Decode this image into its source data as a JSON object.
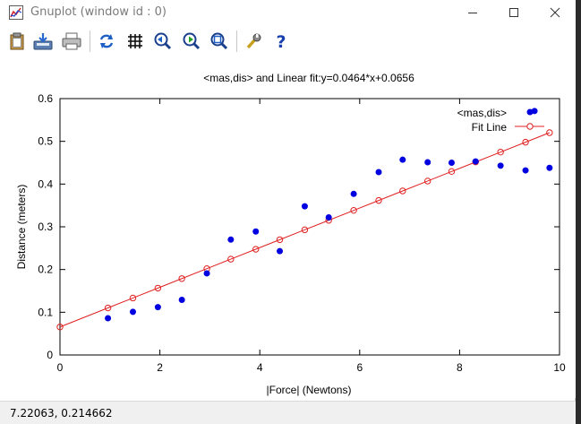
{
  "window": {
    "title": "Gnuplot (window id : 0)"
  },
  "toolbar": {
    "items": [
      {
        "name": "copy-clipboard-icon"
      },
      {
        "name": "save-icon"
      },
      {
        "name": "print-icon"
      },
      {
        "name": "replot-icon"
      },
      {
        "name": "grid-icon"
      },
      {
        "name": "zoom-previous-icon"
      },
      {
        "name": "zoom-next-icon"
      },
      {
        "name": "autoscale-icon"
      },
      {
        "name": "options-icon"
      },
      {
        "name": "help-icon"
      }
    ]
  },
  "status": {
    "coords": "7.22063,  0.214662"
  },
  "colors": {
    "points": "#0000e0",
    "fit": "#e02020",
    "axis": "#000000"
  },
  "chart_data": {
    "type": "scatter",
    "title": "<mas,dis> and Linear fit:y=0.0464*x+0.0656",
    "xlabel": "|Force| (Newtons)",
    "ylabel": "Distance (meters)",
    "xlim": [
      0,
      10
    ],
    "ylim": [
      0,
      0.6
    ],
    "xticks": [
      "0",
      "2",
      "4",
      "6",
      "8",
      "10"
    ],
    "yticks": [
      "0",
      "0.1",
      "0.2",
      "0.3",
      "0.4",
      "0.5",
      "0.6"
    ],
    "grid": false,
    "legend_position": "top-right",
    "series": [
      {
        "name": "<mas,dis>",
        "style": "points",
        "x": [
          0.96,
          1.46,
          1.96,
          2.44,
          2.94,
          3.42,
          3.92,
          4.4,
          4.9,
          5.38,
          5.88,
          6.38,
          6.86,
          7.36,
          7.84,
          8.32,
          8.82,
          9.32,
          9.5,
          9.8
        ],
        "y": [
          0.086,
          0.101,
          0.112,
          0.129,
          0.191,
          0.27,
          0.289,
          0.243,
          0.348,
          0.322,
          0.377,
          0.428,
          0.457,
          0.451,
          0.45,
          0.453,
          0.443,
          0.432,
          0.571,
          0.438
        ]
      },
      {
        "name": "Fit Line",
        "style": "linespoints",
        "x": [
          0,
          0.96,
          1.46,
          1.96,
          2.44,
          2.94,
          3.42,
          3.92,
          4.4,
          4.9,
          5.38,
          5.88,
          6.38,
          6.86,
          7.36,
          7.84,
          8.32,
          8.82,
          9.32,
          9.8
        ],
        "y": [
          0.0656,
          0.1101,
          0.1333,
          0.1565,
          0.1788,
          0.202,
          0.2243,
          0.2475,
          0.2698,
          0.293,
          0.3152,
          0.3384,
          0.3616,
          0.3839,
          0.4071,
          0.4294,
          0.4516,
          0.4748,
          0.498,
          0.5203
        ]
      }
    ]
  }
}
